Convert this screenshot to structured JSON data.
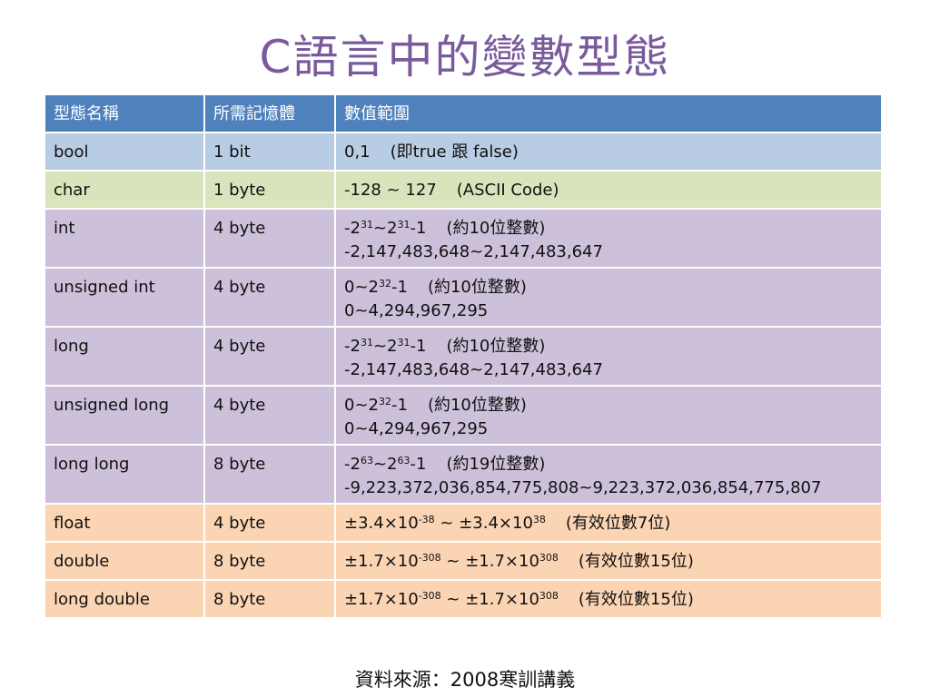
{
  "title": "C語言中的變數型態",
  "table": {
    "headers": [
      "型態名稱",
      "所需記憶體",
      "數值範圍"
    ],
    "rows": [
      {
        "group": "blue",
        "name": "bool",
        "memory": "1 bit",
        "range": "0,1",
        "note": "(即true 跟 false)"
      },
      {
        "group": "green",
        "name": "char",
        "memory": "1 byte",
        "range": "-128 ~ 127",
        "note": "(ASCII Code)"
      },
      {
        "group": "purple",
        "name": "int",
        "memory": "4 byte",
        "range_base1": "-2",
        "range_exp1": "31",
        "range_mid": "~2",
        "range_exp2": "31",
        "range_tail": "-1",
        "note": "(約10位整數)",
        "range_line2": "-2,147,483,648~2,147,483,647"
      },
      {
        "group": "purple",
        "name": "unsigned int",
        "memory": "4 byte",
        "range_base1": "0~2",
        "range_exp1": "32",
        "range_tail": "-1",
        "note": "(約10位整數)",
        "range_line2": "0~4,294,967,295"
      },
      {
        "group": "purple",
        "name": "long",
        "memory": "4 byte",
        "range_base1": "-2",
        "range_exp1": "31",
        "range_mid": "~2",
        "range_exp2": "31",
        "range_tail": "-1",
        "note": "(約10位整數)",
        "range_line2": "-2,147,483,648~2,147,483,647"
      },
      {
        "group": "purple",
        "name": "unsigned long",
        "memory": "4 byte",
        "range_base1": "0~2",
        "range_exp1": "32",
        "range_tail": "-1",
        "note": "(約10位整數)",
        "range_line2": "0~4,294,967,295"
      },
      {
        "group": "purple",
        "name": "long long",
        "memory": "8 byte",
        "range_base1": "-2",
        "range_exp1": "63",
        "range_mid": "~2",
        "range_exp2": "63",
        "range_tail": "-1",
        "note": "(約19位整數)",
        "range_line2": "-9,223,372,036,854,775,808~9,223,372,036,854,775,807"
      },
      {
        "group": "orange",
        "name": "float",
        "memory": "4 byte",
        "range_a": "±3.4×10",
        "range_exp1": "-38",
        "range_mid": " ~ ±3.4×10",
        "range_exp2": "38",
        "note": "(有效位數7位)"
      },
      {
        "group": "orange",
        "name": "double",
        "memory": "8 byte",
        "range_a": "±1.7×10",
        "range_exp1": "-308",
        "range_mid": " ~ ±1.7×10",
        "range_exp2": "308",
        "note": "(有效位數15位)"
      },
      {
        "group": "orange",
        "name": "long double",
        "memory": "8 byte",
        "range_a": "±1.7×10",
        "range_exp1": "-308",
        "range_mid": " ~ ±1.7×10",
        "range_exp2": "308",
        "note": "(有效位數15位)"
      }
    ]
  },
  "source": "資料來源：2008寒訓講義",
  "colors": {
    "title": "#7a5a9c",
    "header": "#4f81bd",
    "blue_row": "#b8cce4",
    "green_row": "#d7e4bc",
    "purple_row": "#ccc0da",
    "orange_row": "#fbd4b4"
  }
}
